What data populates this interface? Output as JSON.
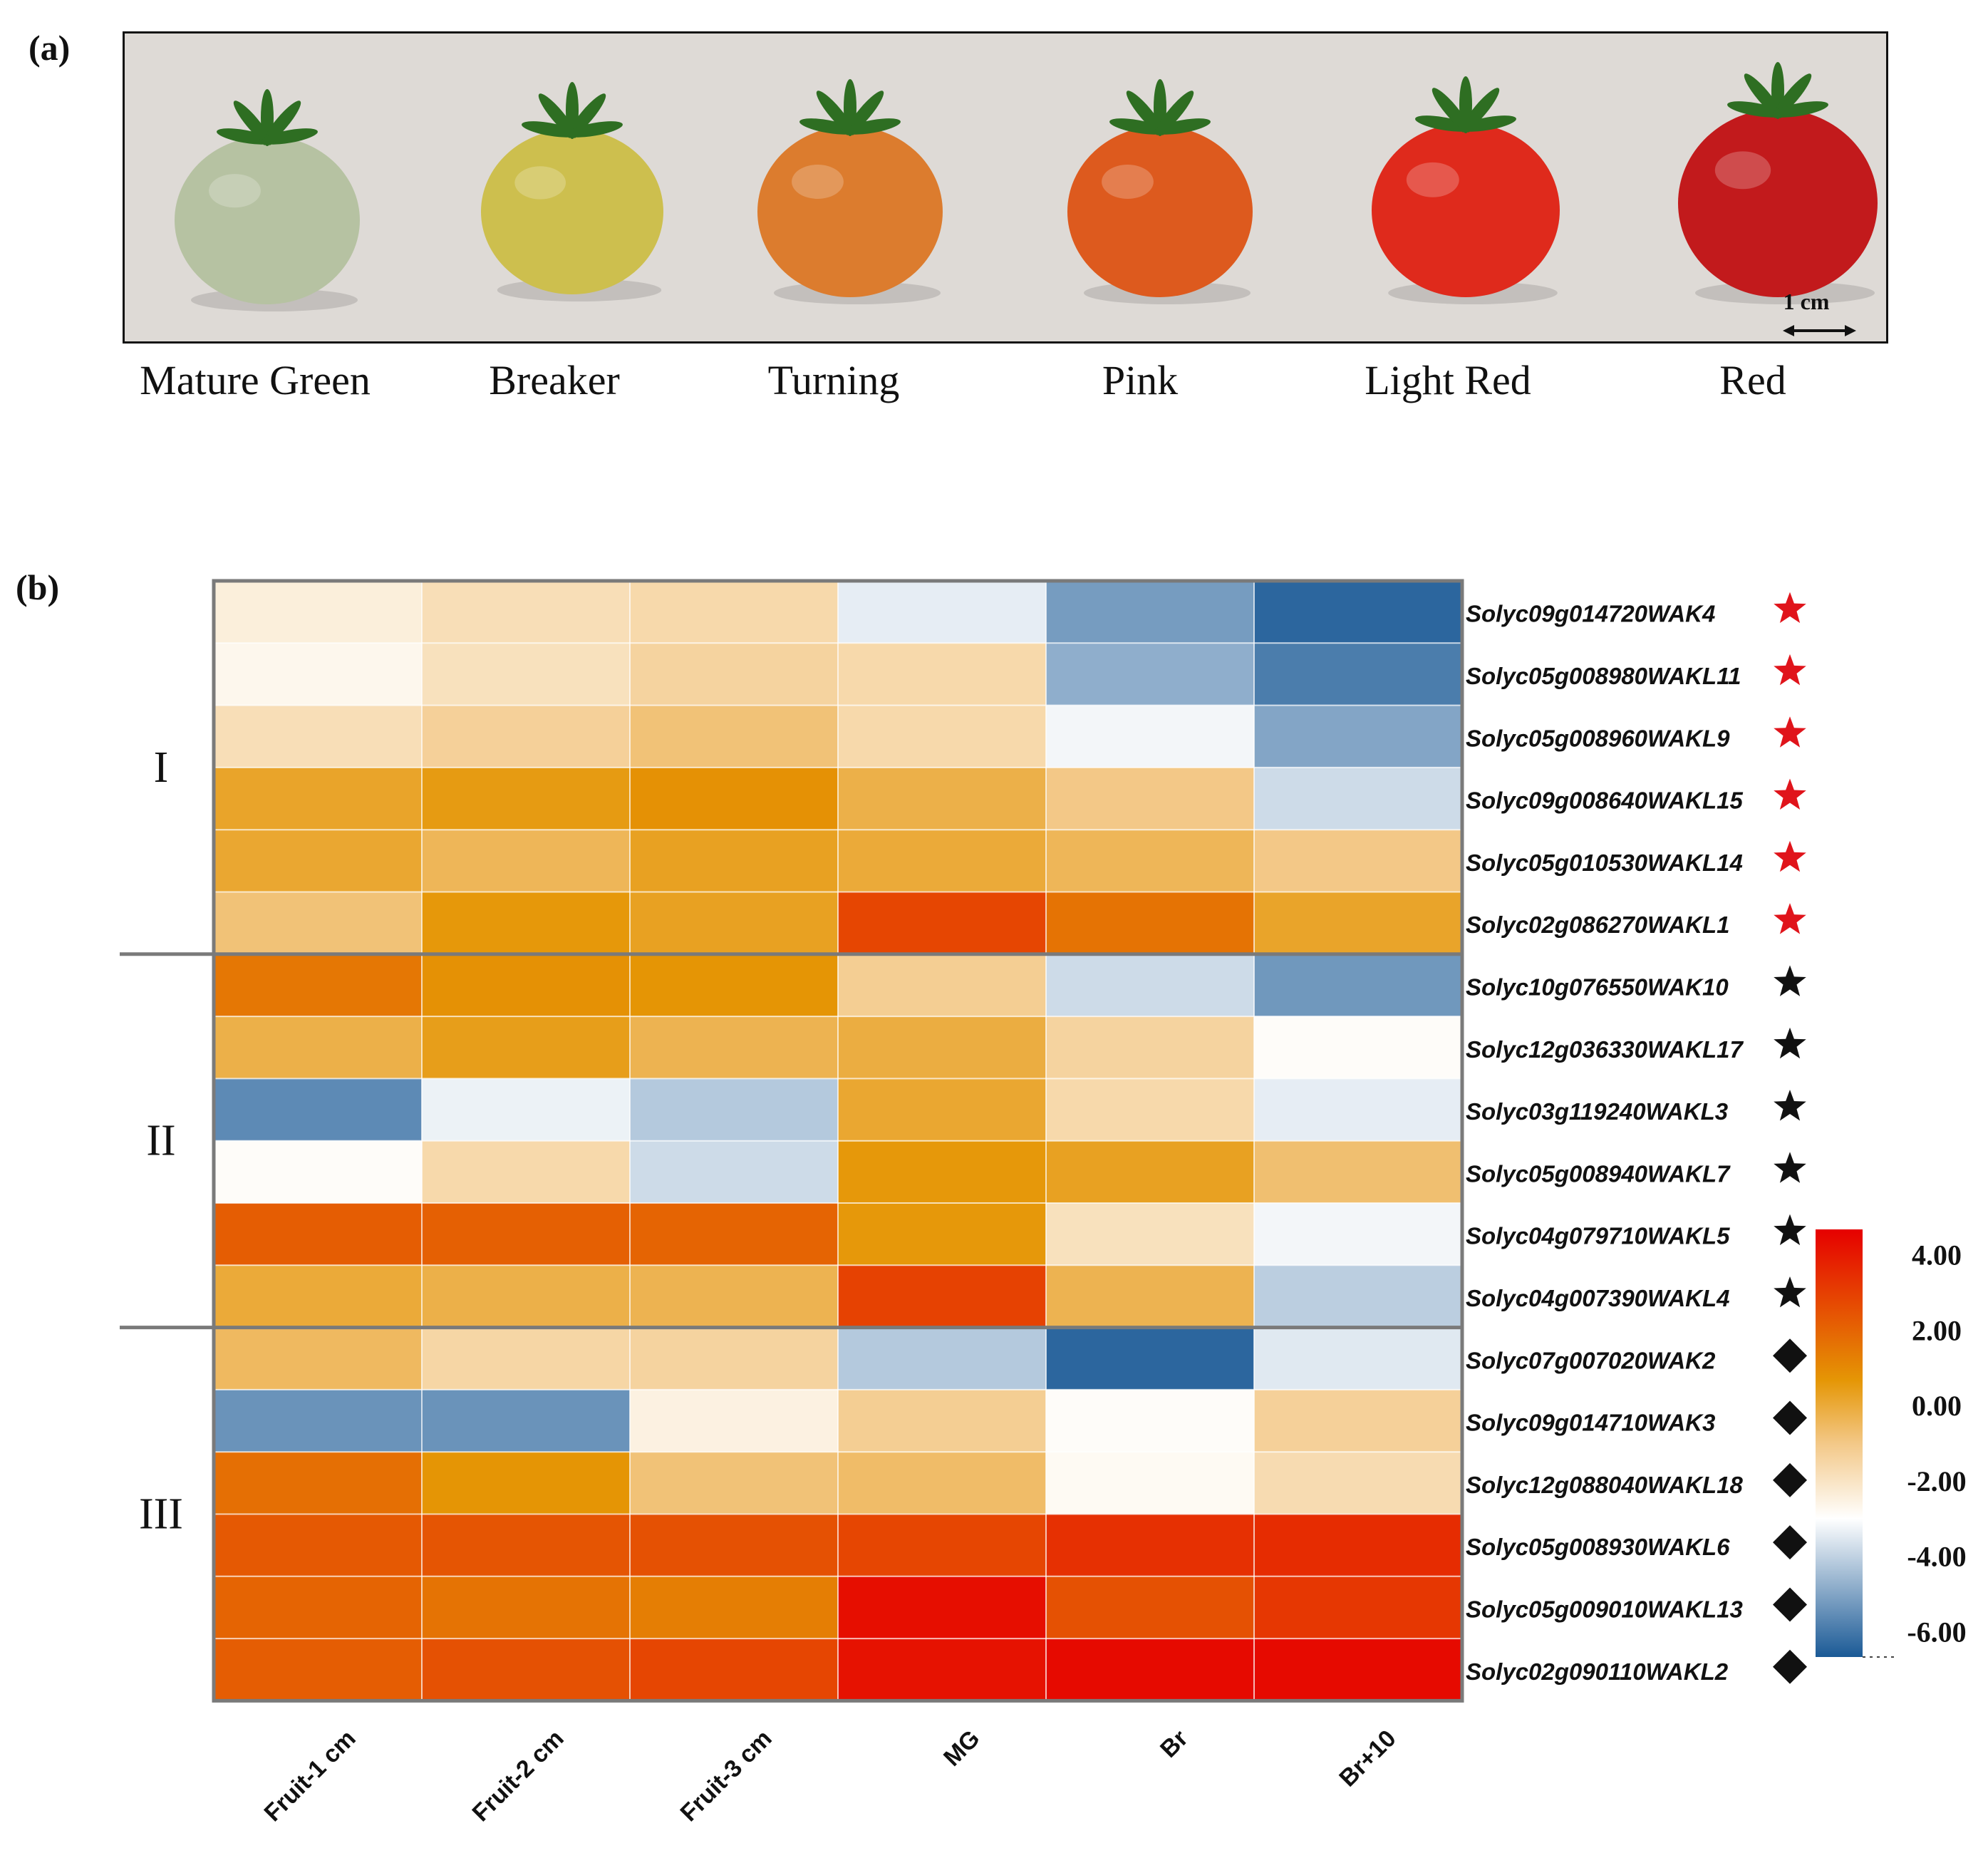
{
  "panel_a": {
    "label": "(a)",
    "scale_bar": "1 cm",
    "stages": [
      {
        "name": "Mature Green",
        "color": "#b6c2a2"
      },
      {
        "name": "Breaker",
        "color": "#cdbf4e"
      },
      {
        "name": "Turning",
        "color": "#dc7c2e"
      },
      {
        "name": "Pink",
        "color": "#dd5a1e"
      },
      {
        "name": "Light Red",
        "color": "#df2a1c"
      },
      {
        "name": "Red",
        "color": "#c21a1c"
      }
    ],
    "leaf_color": "#2e6e22",
    "background_color": "#dedad6"
  },
  "panel_b": {
    "label": "(b)"
  },
  "chart_data": {
    "type": "heatmap",
    "columns": [
      "Fruit-1 cm",
      "Fruit-2 cm",
      "Fruit-3 cm",
      "MG",
      "Br",
      "Br+10"
    ],
    "rows": [
      {
        "gene": "Solyc09g014720WAK4",
        "marker": "star",
        "marker_color": "#e0141b",
        "group": "I",
        "values": [
          -2.4,
          -1.8,
          -1.6,
          -3.4,
          -5.2,
          -6.4
        ]
      },
      {
        "gene": "Solyc05g008980WAKL11",
        "marker": "star",
        "marker_color": "#e0141b",
        "group": "I",
        "values": [
          -2.7,
          -1.9,
          -1.4,
          -1.6,
          -4.8,
          -5.9
        ]
      },
      {
        "gene": "Solyc05g008960WAKL9",
        "marker": "star",
        "marker_color": "#e0141b",
        "group": "I",
        "values": [
          -1.8,
          -1.3,
          -0.8,
          -1.6,
          -3.2,
          -5.0
        ]
      },
      {
        "gene": "Solyc09g008640WAKL15",
        "marker": "star",
        "marker_color": "#e0141b",
        "group": "I",
        "values": [
          0.2,
          0.5,
          0.8,
          -0.2,
          -1.0,
          -3.8
        ]
      },
      {
        "gene": "Solyc05g010530WAKL14",
        "marker": "star",
        "marker_color": "#e0141b",
        "group": "I",
        "values": [
          0.1,
          -0.4,
          0.3,
          0.0,
          -0.4,
          -1.0
        ]
      },
      {
        "gene": "Solyc02g086270WAKL1",
        "marker": "star",
        "marker_color": "#e0141b",
        "group": "I",
        "values": [
          -0.8,
          0.6,
          0.3,
          2.8,
          1.6,
          0.2
        ]
      },
      {
        "gene": "Solyc10g076550WAK10",
        "marker": "star",
        "marker_color": "#111111",
        "group": "II",
        "values": [
          1.5,
          0.8,
          0.7,
          -1.2,
          -3.8,
          -5.3
        ]
      },
      {
        "gene": "Solyc12g036330WAKL17",
        "marker": "star",
        "marker_color": "#111111",
        "group": "II",
        "values": [
          -0.2,
          0.4,
          -0.3,
          -0.1,
          -1.4,
          -2.9
        ]
      },
      {
        "gene": "Solyc03g119240WAKL3",
        "marker": "star",
        "marker_color": "#111111",
        "group": "II",
        "values": [
          -5.6,
          -3.3,
          -4.2,
          0.1,
          -1.6,
          -3.4
        ]
      },
      {
        "gene": "Solyc05g008940WAKL7",
        "marker": "star",
        "marker_color": "#111111",
        "group": "II",
        "values": [
          -2.9,
          -1.6,
          -3.8,
          0.6,
          0.3,
          -0.7
        ]
      },
      {
        "gene": "Solyc04g079710WAKL5",
        "marker": "star",
        "marker_color": "#111111",
        "group": "II",
        "values": [
          2.2,
          2.1,
          2.0,
          0.6,
          -1.9,
          -3.2
        ]
      },
      {
        "gene": "Solyc04g007390WAKL4",
        "marker": "star",
        "marker_color": "#111111",
        "group": "II",
        "values": [
          0.0,
          -0.2,
          -0.3,
          2.9,
          -0.3,
          -4.1
        ]
      },
      {
        "gene": "Solyc07g007020WAK2",
        "marker": "diamond",
        "marker_color": "#111111",
        "group": "III",
        "values": [
          -0.5,
          -1.5,
          -1.4,
          -4.2,
          -6.4,
          -3.5
        ]
      },
      {
        "gene": "Solyc09g014710WAK3",
        "marker": "diamond",
        "marker_color": "#111111",
        "group": "III",
        "values": [
          -5.4,
          -5.4,
          -2.5,
          -1.2,
          -2.9,
          -1.3
        ]
      },
      {
        "gene": "Solyc12g088040WAKL18",
        "marker": "diamond",
        "marker_color": "#111111",
        "group": "III",
        "values": [
          1.7,
          0.7,
          -0.8,
          -0.6,
          -2.8,
          -1.7
        ]
      },
      {
        "gene": "Solyc05g008930WAKL6",
        "marker": "diamond",
        "marker_color": "#111111",
        "group": "III",
        "values": [
          2.3,
          2.4,
          2.5,
          2.8,
          3.4,
          3.5
        ]
      },
      {
        "gene": "Solyc05g009010WAKL13",
        "marker": "diamond",
        "marker_color": "#111111",
        "group": "III",
        "values": [
          2.0,
          1.6,
          1.3,
          4.3,
          2.5,
          3.2
        ]
      },
      {
        "gene": "Solyc02g090110WAKL2",
        "marker": "diamond",
        "marker_color": "#111111",
        "group": "III",
        "values": [
          2.2,
          2.5,
          2.8,
          4.2,
          4.4,
          4.4
        ]
      }
    ],
    "groups": [
      {
        "name": "I",
        "start": 0,
        "end": 5
      },
      {
        "name": "II",
        "start": 6,
        "end": 11
      },
      {
        "name": "III",
        "start": 12,
        "end": 17
      }
    ],
    "color_scale": {
      "range": [
        -6.67,
        4.67
      ],
      "ticks": [
        4.0,
        2.0,
        0.0,
        -2.0,
        -4.0,
        -6.0
      ],
      "tick_labels": [
        "4.00",
        "2.00",
        "0.00",
        "-2.00",
        "-4.00",
        "-6.00"
      ],
      "stops": [
        {
          "value": -6.67,
          "color": "#1b5a96"
        },
        {
          "value": -3.0,
          "color": "#ffffff"
        },
        {
          "value": -1.0,
          "color": "#f3c887"
        },
        {
          "value": 0.67,
          "color": "#e59605"
        },
        {
          "value": 4.67,
          "color": "#e60000"
        }
      ]
    }
  }
}
